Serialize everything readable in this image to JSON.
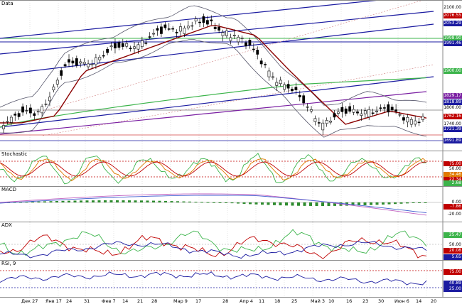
{
  "panes": {
    "price": {
      "title": "Data"
    },
    "stoch": {
      "title": "Stochastic"
    },
    "macd": {
      "title": "MACD"
    },
    "adx": {
      "title": "ADX"
    },
    "rsi": {
      "title": "RSI, 9"
    }
  },
  "price_tags": [
    {
      "text": "2100.00",
      "bg": "#ffffff",
      "fg": "#000000"
    },
    {
      "text": "2076.55",
      "bg": "#c00000",
      "fg": "#ffffff"
    },
    {
      "text": "2053.29",
      "bg": "#1a1aa0",
      "fg": "#ffffff"
    },
    {
      "text": "1998.90",
      "bg": "#3cb44b",
      "fg": "#ffffff"
    },
    {
      "text": "1991.46",
      "bg": "#1a1aa0",
      "fg": "#ffffff"
    },
    {
      "text": "1900.00",
      "bg": "#3cb44b",
      "fg": "#ffffff"
    },
    {
      "text": "1829.17",
      "bg": "#7a1fa2",
      "fg": "#ffffff"
    },
    {
      "text": "1818.89",
      "bg": "#1a1aa0",
      "fg": "#ffffff"
    },
    {
      "text": "1800.00",
      "bg": "#ffffff",
      "fg": "#000000"
    },
    {
      "text": "1762.16",
      "bg": "#c00000",
      "fg": "#ffffff"
    },
    {
      "text": "1740.00",
      "bg": "#ffffff",
      "fg": "#000000"
    },
    {
      "text": "1721.39",
      "bg": "#1a1aa0",
      "fg": "#ffffff"
    },
    {
      "text": "1691.89",
      "bg": "#1a1aa0",
      "fg": "#ffffff"
    }
  ],
  "stoch_tags": [
    {
      "text": "75.00",
      "bg": "#c00000",
      "fg": "#ffffff"
    },
    {
      "text": "50.00",
      "bg": "#ffffff",
      "fg": "#000000"
    },
    {
      "text": "34.46",
      "bg": "#e07a00",
      "fg": "#ffffff"
    },
    {
      "text": "22.34",
      "bg": "#c00000",
      "fg": "#ffffff"
    },
    {
      "text": "2.68",
      "bg": "#3cb44b",
      "fg": "#ffffff"
    }
  ],
  "macd_tags": [
    {
      "text": "0.00",
      "bg": "#ffffff",
      "fg": "#000000"
    },
    {
      "text": "-7.86",
      "bg": "#c00000",
      "fg": "#ffffff"
    },
    {
      "text": "-20.00",
      "bg": "#ffffff",
      "fg": "#000000"
    }
  ],
  "adx_tags": [
    {
      "text": "25.47",
      "bg": "#3cb44b",
      "fg": "#ffffff"
    },
    {
      "text": "50.00",
      "bg": "#ffffff",
      "fg": "#000000"
    },
    {
      "text": "20.08",
      "bg": "#c00000",
      "fg": "#ffffff"
    },
    {
      "text": "5.65",
      "bg": "#1a1aa0",
      "fg": "#ffffff"
    }
  ],
  "rsi_tags": [
    {
      "text": "75.00",
      "bg": "#c00000",
      "fg": "#ffffff"
    },
    {
      "text": "40.89",
      "bg": "#1a1aa0",
      "fg": "#ffffff"
    },
    {
      "text": "25.00",
      "bg": "#1a1aa0",
      "fg": "#ffffff"
    }
  ],
  "x_axis": [
    "Дек 27",
    "Янв 17",
    "24",
    "31",
    "Фев 7",
    "14",
    "21",
    "28",
    "Мар 9",
    "17",
    "28",
    "Апр 4",
    "11",
    "18",
    "25",
    "Май 3",
    "10",
    "16",
    "23",
    "30",
    "Июн 6",
    "14",
    "20"
  ],
  "colors": {
    "channel": "#1a1aa0",
    "ma_short": "#8b0000",
    "ma_long": "#3cb44b",
    "ma_long2": "#7a1fa2",
    "bollinger": "#55556a",
    "candle_up": "#ffffff",
    "candle_down": "#000000",
    "grid": "#c8c8c8"
  }
}
